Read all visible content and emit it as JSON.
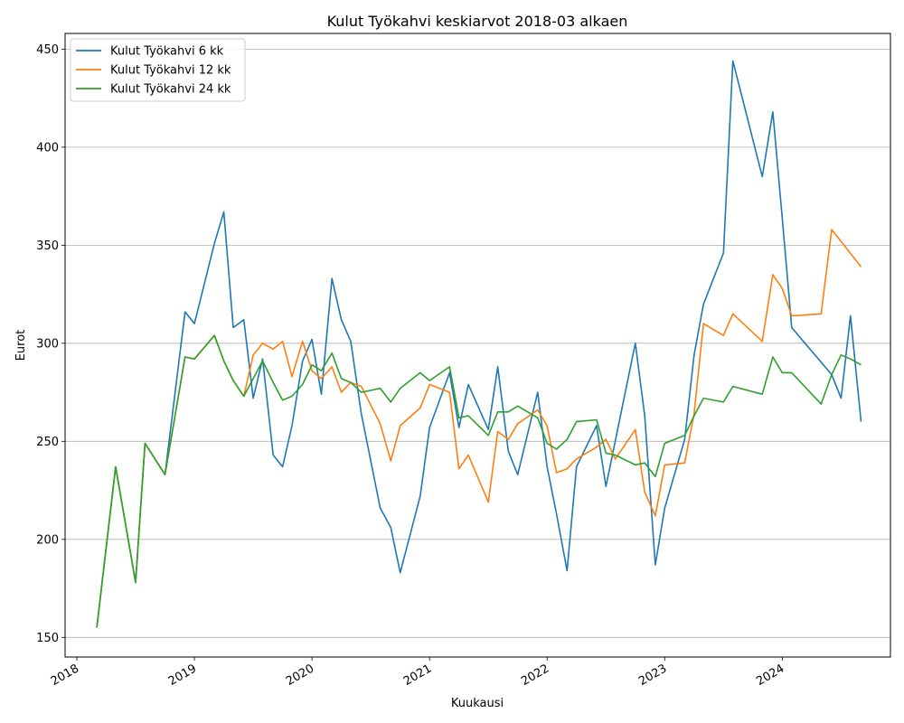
{
  "chart_data": {
    "type": "line",
    "title": "Kulut Työkahvi keskiarvot 2018-03 alkaen",
    "xlabel": "Kuukausi",
    "ylabel": "Eurot",
    "xlim": [
      2017.9,
      2024.92
    ],
    "ylim": [
      140,
      458
    ],
    "yticks": [
      150,
      200,
      250,
      300,
      350,
      400,
      450
    ],
    "xticks": [
      2018,
      2019,
      2020,
      2021,
      2022,
      2023,
      2024
    ],
    "grid": "y",
    "legend": "top-left",
    "series": [
      {
        "name": "Kulut Työkahvi 6 kk",
        "color": "#1f77b4",
        "points": [
          [
            2018.17,
            155
          ],
          [
            2018.33,
            237
          ],
          [
            2018.5,
            178
          ],
          [
            2018.58,
            249
          ],
          [
            2018.75,
            233
          ],
          [
            2018.92,
            316
          ],
          [
            2019.0,
            310
          ],
          [
            2019.17,
            351
          ],
          [
            2019.25,
            367
          ],
          [
            2019.33,
            308
          ],
          [
            2019.42,
            312
          ],
          [
            2019.5,
            272
          ],
          [
            2019.58,
            292
          ],
          [
            2019.67,
            243
          ],
          [
            2019.75,
            237
          ],
          [
            2019.83,
            258
          ],
          [
            2019.92,
            291
          ],
          [
            2020.0,
            302
          ],
          [
            2020.08,
            274
          ],
          [
            2020.17,
            333
          ],
          [
            2020.25,
            312
          ],
          [
            2020.33,
            301
          ],
          [
            2020.42,
            264
          ],
          [
            2020.58,
            216
          ],
          [
            2020.67,
            206
          ],
          [
            2020.75,
            183
          ],
          [
            2020.92,
            222
          ],
          [
            2021.0,
            257
          ],
          [
            2021.17,
            285
          ],
          [
            2021.25,
            257
          ],
          [
            2021.33,
            279
          ],
          [
            2021.5,
            256
          ],
          [
            2021.58,
            288
          ],
          [
            2021.67,
            245
          ],
          [
            2021.75,
            233
          ],
          [
            2021.92,
            275
          ],
          [
            2022.0,
            237
          ],
          [
            2022.08,
            213
          ],
          [
            2022.17,
            184
          ],
          [
            2022.25,
            237
          ],
          [
            2022.42,
            258
          ],
          [
            2022.5,
            227
          ],
          [
            2022.75,
            300
          ],
          [
            2022.83,
            263
          ],
          [
            2022.92,
            187
          ],
          [
            2023.0,
            216
          ],
          [
            2023.17,
            251
          ],
          [
            2023.25,
            294
          ],
          [
            2023.33,
            320
          ],
          [
            2023.5,
            346
          ],
          [
            2023.58,
            444
          ],
          [
            2023.83,
            385
          ],
          [
            2023.92,
            418
          ],
          [
            2024.0,
            364
          ],
          [
            2024.08,
            308
          ],
          [
            2024.42,
            284
          ],
          [
            2024.5,
            272
          ],
          [
            2024.58,
            314
          ],
          [
            2024.67,
            260
          ]
        ]
      },
      {
        "name": "Kulut Työkahvi 12 kk",
        "color": "#ff7f0e",
        "points": [
          [
            2018.17,
            155
          ],
          [
            2018.33,
            237
          ],
          [
            2018.5,
            178
          ],
          [
            2018.58,
            249
          ],
          [
            2018.75,
            233
          ],
          [
            2018.92,
            293
          ],
          [
            2019.0,
            292
          ],
          [
            2019.17,
            304
          ],
          [
            2019.25,
            291
          ],
          [
            2019.33,
            281
          ],
          [
            2019.42,
            273
          ],
          [
            2019.5,
            294
          ],
          [
            2019.58,
            300
          ],
          [
            2019.67,
            297
          ],
          [
            2019.75,
            301
          ],
          [
            2019.83,
            283
          ],
          [
            2019.92,
            301
          ],
          [
            2020.0,
            286
          ],
          [
            2020.08,
            282
          ],
          [
            2020.17,
            288
          ],
          [
            2020.25,
            275
          ],
          [
            2020.33,
            280
          ],
          [
            2020.42,
            278
          ],
          [
            2020.58,
            259
          ],
          [
            2020.67,
            240
          ],
          [
            2020.75,
            258
          ],
          [
            2020.92,
            267
          ],
          [
            2021.0,
            279
          ],
          [
            2021.17,
            275
          ],
          [
            2021.25,
            236
          ],
          [
            2021.33,
            243
          ],
          [
            2021.5,
            219
          ],
          [
            2021.58,
            255
          ],
          [
            2021.67,
            251
          ],
          [
            2021.75,
            259
          ],
          [
            2021.92,
            266
          ],
          [
            2022.0,
            258
          ],
          [
            2022.08,
            234
          ],
          [
            2022.17,
            236
          ],
          [
            2022.25,
            241
          ],
          [
            2022.42,
            247
          ],
          [
            2022.5,
            251
          ],
          [
            2022.58,
            241
          ],
          [
            2022.75,
            256
          ],
          [
            2022.83,
            224
          ],
          [
            2022.92,
            212
          ],
          [
            2023.0,
            238
          ],
          [
            2023.17,
            239
          ],
          [
            2023.25,
            264
          ],
          [
            2023.33,
            310
          ],
          [
            2023.5,
            304
          ],
          [
            2023.58,
            315
          ],
          [
            2023.83,
            301
          ],
          [
            2023.92,
            335
          ],
          [
            2024.0,
            328
          ],
          [
            2024.08,
            314
          ],
          [
            2024.33,
            315
          ],
          [
            2024.42,
            358
          ],
          [
            2024.67,
            339
          ]
        ]
      },
      {
        "name": "Kulut Työkahvi 24 kk",
        "color": "#2ca02c",
        "points": [
          [
            2018.17,
            155
          ],
          [
            2018.33,
            237
          ],
          [
            2018.5,
            178
          ],
          [
            2018.58,
            249
          ],
          [
            2018.75,
            233
          ],
          [
            2018.92,
            293
          ],
          [
            2019.0,
            292
          ],
          [
            2019.17,
            304
          ],
          [
            2019.25,
            291
          ],
          [
            2019.33,
            281
          ],
          [
            2019.42,
            273
          ],
          [
            2019.5,
            282
          ],
          [
            2019.58,
            291
          ],
          [
            2019.67,
            280
          ],
          [
            2019.75,
            271
          ],
          [
            2019.83,
            273
          ],
          [
            2019.92,
            279
          ],
          [
            2020.0,
            289
          ],
          [
            2020.08,
            286
          ],
          [
            2020.17,
            295
          ],
          [
            2020.25,
            282
          ],
          [
            2020.33,
            280
          ],
          [
            2020.42,
            275
          ],
          [
            2020.58,
            277
          ],
          [
            2020.67,
            270
          ],
          [
            2020.75,
            277
          ],
          [
            2020.92,
            285
          ],
          [
            2021.0,
            281
          ],
          [
            2021.17,
            288
          ],
          [
            2021.25,
            262
          ],
          [
            2021.33,
            263
          ],
          [
            2021.5,
            253
          ],
          [
            2021.58,
            265
          ],
          [
            2021.67,
            265
          ],
          [
            2021.75,
            268
          ],
          [
            2021.92,
            262
          ],
          [
            2022.0,
            249
          ],
          [
            2022.08,
            246
          ],
          [
            2022.17,
            251
          ],
          [
            2022.25,
            260
          ],
          [
            2022.42,
            261
          ],
          [
            2022.5,
            244
          ],
          [
            2022.58,
            243
          ],
          [
            2022.75,
            238
          ],
          [
            2022.83,
            239
          ],
          [
            2022.92,
            232
          ],
          [
            2023.0,
            249
          ],
          [
            2023.17,
            253
          ],
          [
            2023.25,
            263
          ],
          [
            2023.33,
            272
          ],
          [
            2023.5,
            270
          ],
          [
            2023.58,
            278
          ],
          [
            2023.83,
            274
          ],
          [
            2023.92,
            293
          ],
          [
            2024.0,
            285
          ],
          [
            2024.08,
            285
          ],
          [
            2024.33,
            269
          ],
          [
            2024.42,
            284
          ],
          [
            2024.5,
            294
          ],
          [
            2024.58,
            292
          ],
          [
            2024.67,
            289
          ]
        ]
      }
    ]
  }
}
